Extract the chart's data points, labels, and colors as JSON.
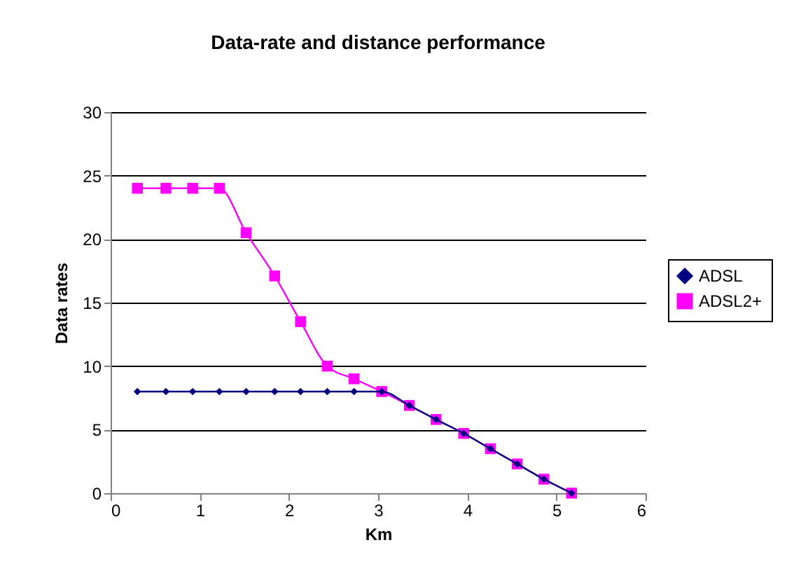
{
  "chart_data": {
    "type": "line",
    "title": "Data-rate and distance performance",
    "xlabel": "Km",
    "ylabel": "Data rates",
    "xlim": [
      0,
      6
    ],
    "xticks": [
      0,
      1,
      2,
      3,
      4,
      5,
      6
    ],
    "ylim": [
      0,
      30
    ],
    "yticks": [
      0,
      5,
      10,
      15,
      20,
      25,
      30
    ],
    "grid": "y",
    "legend": "right",
    "x": [
      0.3,
      0.62,
      0.92,
      1.22,
      1.52,
      1.84,
      2.13,
      2.43,
      2.73,
      3.04,
      3.35,
      3.65,
      3.96,
      4.26,
      4.56,
      4.86,
      5.17
    ],
    "series": [
      {
        "name": "ADSL",
        "color": "#000080",
        "marker": "diamond",
        "values": [
          8,
          8,
          8,
          8,
          8,
          8,
          8,
          8,
          8,
          8,
          6.9,
          5.8,
          4.7,
          3.5,
          2.3,
          1.1,
          0
        ]
      },
      {
        "name": "ADSL2+",
        "color": "#ff00ff",
        "marker": "square",
        "values": [
          24,
          24,
          24,
          24,
          20.5,
          17.1,
          13.5,
          10,
          9,
          8,
          6.9,
          5.8,
          4.7,
          3.5,
          2.3,
          1.1,
          0
        ]
      }
    ]
  }
}
